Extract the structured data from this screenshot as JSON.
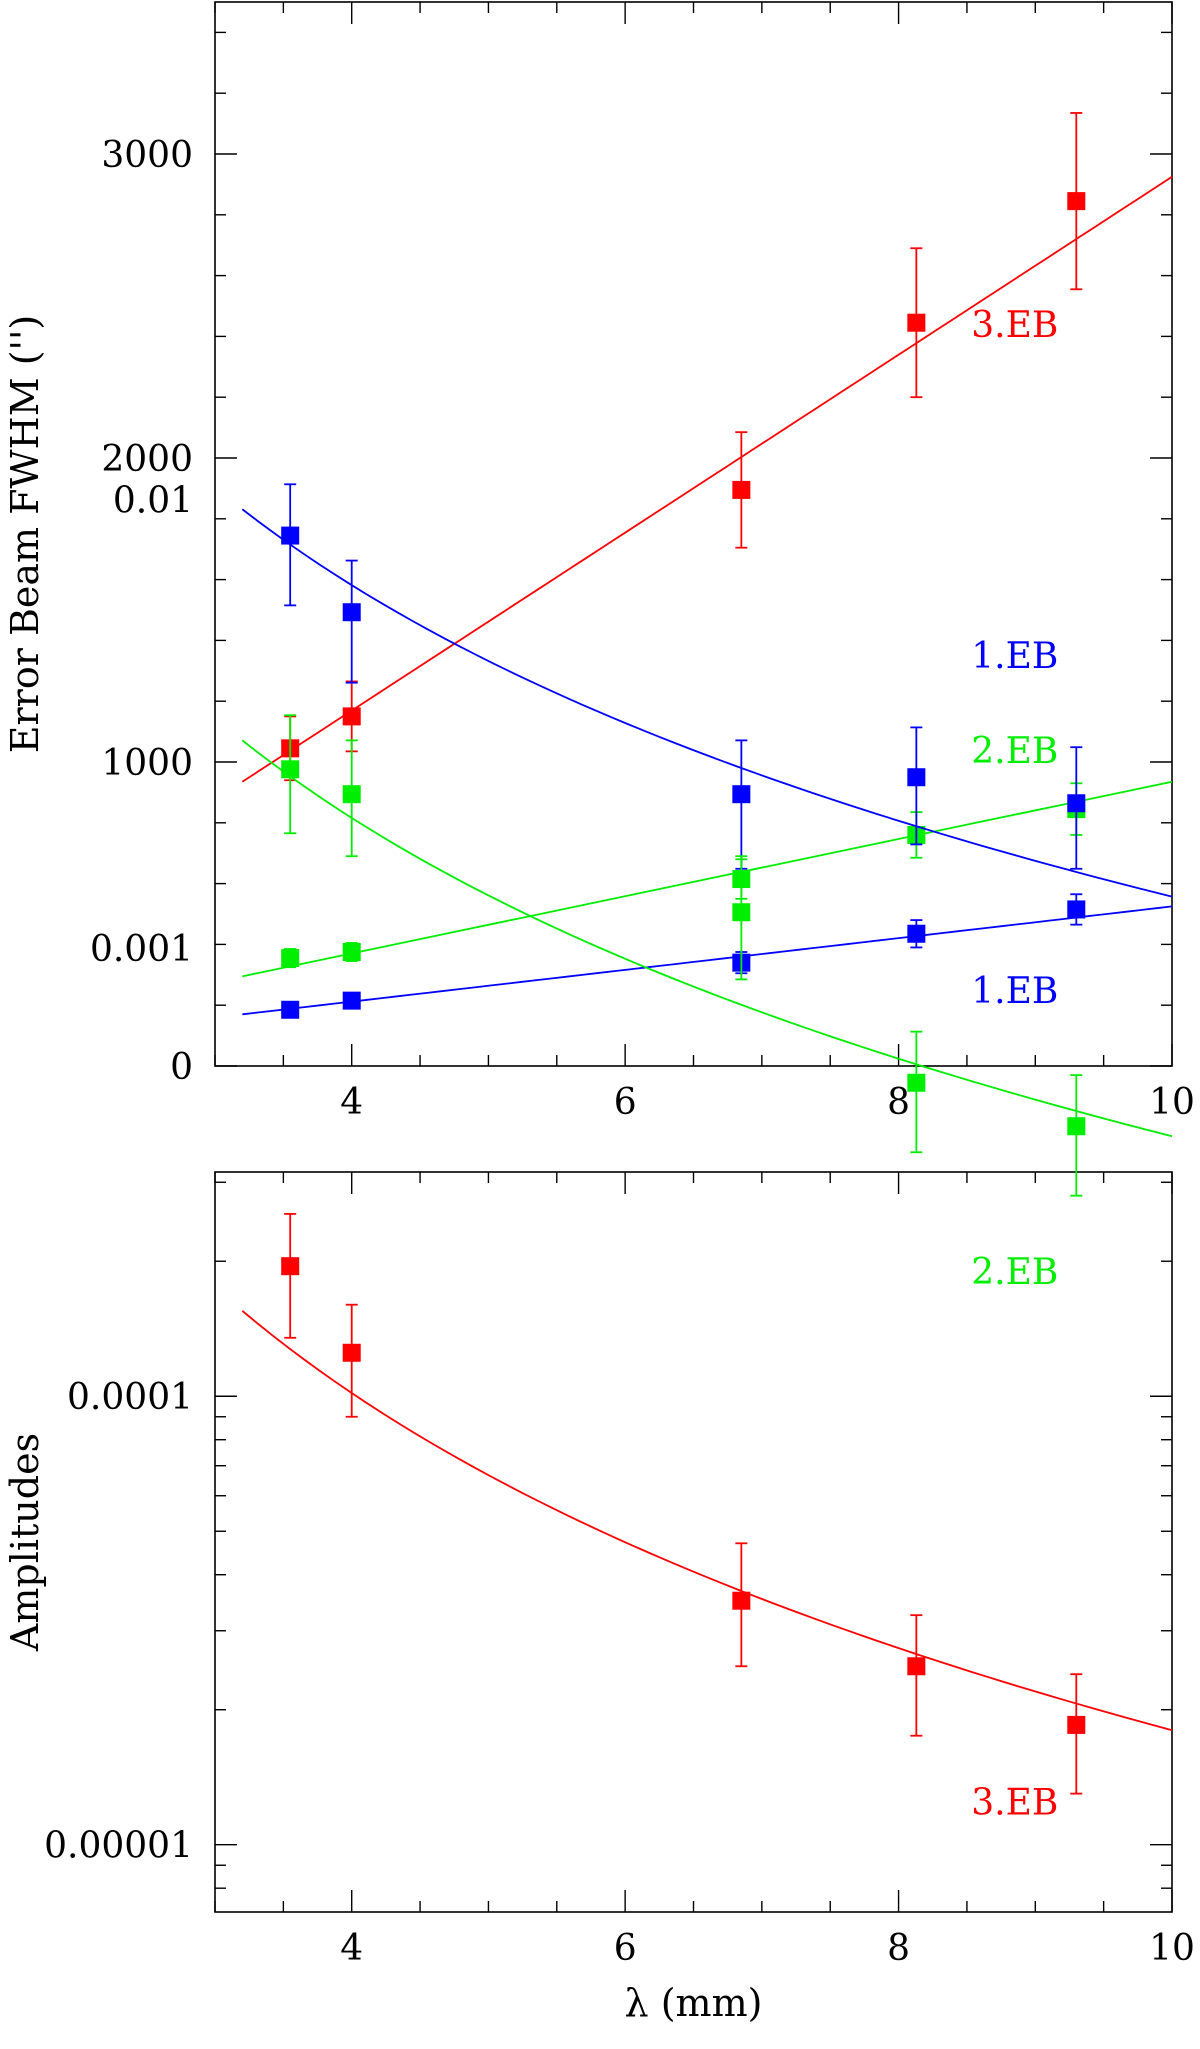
{
  "chart_data": [
    {
      "type": "scatter",
      "id": "top",
      "xlabel": "",
      "ylabel": "Error Beam FWHM ('')",
      "xlim": [
        3.0,
        10.0
      ],
      "ylim": [
        0,
        3500
      ],
      "yscale": "linear",
      "xticks": [
        4,
        6,
        8,
        10
      ],
      "xtick_labels": [
        "4",
        "6",
        "8",
        "10"
      ],
      "yticks": [
        0,
        1000,
        2000,
        3000
      ],
      "ytick_labels": [
        "0",
        "1000",
        "2000",
        "3000"
      ],
      "yminor_step": 200,
      "xminor_step": 0.5,
      "x": [
        3.55,
        4.0,
        6.85,
        8.13,
        9.3
      ],
      "series": [
        {
          "name": "1.EB",
          "color": "#0000ff",
          "values": [
            185,
            215,
            340,
            435,
            515
          ],
          "errors": [
            20,
            20,
            35,
            45,
            50
          ],
          "fit": {
            "kind": "linear",
            "x0": 3.2,
            "x1": 10.0,
            "y0": 170,
            "y1": 525
          }
        },
        {
          "name": "2.EB",
          "color": "#00ee00",
          "values": [
            355,
            375,
            615,
            760,
            845
          ],
          "errors": [
            30,
            30,
            65,
            75,
            85
          ],
          "fit": {
            "kind": "linear",
            "x0": 3.2,
            "x1": 10.0,
            "y0": 295,
            "y1": 935
          }
        },
        {
          "name": "3.EB",
          "color": "#ff0000",
          "values": [
            1045,
            1150,
            1895,
            2445,
            2845
          ],
          "errors": [
            105,
            115,
            190,
            245,
            290
          ],
          "fit": {
            "kind": "linear",
            "x0": 3.2,
            "x1": 10.0,
            "y0": 935,
            "y1": 2925
          }
        }
      ],
      "annotations": [
        {
          "text": "3.EB",
          "x": 8.85,
          "y": 2440,
          "color": "#ff0000"
        },
        {
          "text": "2.EB",
          "x": 8.85,
          "y": 1040,
          "color": "#00ee00"
        },
        {
          "text": "1.EB",
          "x": 8.85,
          "y": 250,
          "color": "#0000ff"
        }
      ]
    },
    {
      "type": "scatter",
      "id": "bottom",
      "xlabel": "λ (mm)",
      "ylabel": "Amplitudes",
      "xlim": [
        3.0,
        10.0
      ],
      "ylim_log10": [
        -5.15,
        -3.5
      ],
      "yscale": "log",
      "xticks": [
        4,
        6,
        8,
        10
      ],
      "xtick_labels": [
        "4",
        "6",
        "8",
        "10"
      ],
      "yticks": [
        1e-05,
        0.0001,
        0.001,
        0.01
      ],
      "ytick_labels": [
        "0.00001",
        "0.0001",
        "0.001",
        "0.01"
      ],
      "xminor_step": 0.5,
      "x": [
        3.55,
        4.0,
        6.85,
        8.13,
        9.3
      ],
      "series": [
        {
          "name": "1.EB",
          "color": "#0000ff",
          "values": [
            0.0083,
            0.0056,
            0.0022,
            0.0024,
            0.0021
          ],
          "errors_lo": [
            0.0025,
            0.0017,
            0.0007,
            0.0007,
            0.0006
          ],
          "errors_hi": [
            0.0025,
            0.0017,
            0.0007,
            0.0007,
            0.0007
          ],
          "fit": {
            "kind": "power",
            "x0": 3.2,
            "x1": 10.0,
            "y0": 0.0095,
            "y1": 0.0013
          }
        },
        {
          "name": "2.EB",
          "color": "#00ee00",
          "values": [
            0.0025,
            0.0022,
            0.0012,
            0.0005,
            0.0004
          ],
          "errors_lo": [
            0.0007,
            0.0006,
            0.00035,
            0.00015,
            0.00012
          ],
          "errors_hi": [
            0.0008,
            0.0007,
            0.0004,
            0.00015,
            0.00012
          ],
          "fit": {
            "kind": "power",
            "x0": 3.2,
            "x1": 10.0,
            "y0": 0.0029,
            "y1": 0.00038
          }
        },
        {
          "name": "3.EB",
          "color": "#ff0000",
          "values": [
            0.000195,
            0.000125,
            3.5e-05,
            2.5e-05,
            1.85e-05
          ],
          "errors_lo": [
            6e-05,
            3.5e-05,
            1e-05,
            7.5e-06,
            5.5e-06
          ],
          "errors_hi": [
            6e-05,
            3.5e-05,
            1.2e-05,
            7.5e-06,
            5.5e-06
          ],
          "fit": {
            "kind": "power",
            "x0": 3.2,
            "x1": 10.0,
            "y0": 0.000155,
            "y1": 1.8e-05
          }
        }
      ],
      "annotations": [
        {
          "text": "1.EB",
          "x": 8.85,
          "y": 0.0045,
          "color": "#0000ff"
        },
        {
          "text": "2.EB",
          "x": 8.85,
          "y": 0.00019,
          "color": "#00ee00"
        },
        {
          "text": "3.EB",
          "x": 8.85,
          "y": 1.25e-05,
          "color": "#ff0000"
        }
      ]
    }
  ]
}
